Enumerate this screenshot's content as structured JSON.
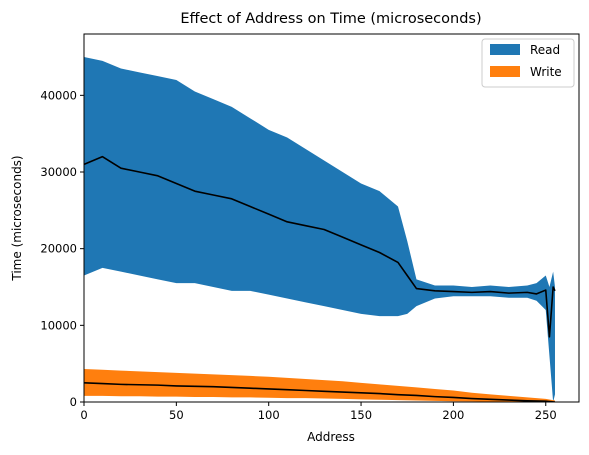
{
  "chart_data": {
    "type": "area",
    "title": "Effect of Address on Time (microseconds)",
    "xlabel": "Address",
    "ylabel": "Time (microseconds)",
    "xlim": [
      0,
      268
    ],
    "ylim": [
      0,
      48000
    ],
    "xticks": [
      "0",
      "50",
      "100",
      "150",
      "200",
      "250"
    ],
    "yticks": [
      "0",
      "10000",
      "20000",
      "30000",
      "40000"
    ],
    "xtick_values": [
      0,
      50,
      100,
      150,
      200,
      250
    ],
    "ytick_values": [
      0,
      10000,
      20000,
      30000,
      40000
    ],
    "grid": false,
    "legend_position": "top-right",
    "legend": [
      "Read",
      "Write"
    ],
    "mean_line_color": "#000000",
    "series": [
      {
        "name": "Read",
        "color": "#1f77b4",
        "note_band": "min/max band with mean line",
        "x": [
          0,
          10,
          20,
          30,
          40,
          50,
          60,
          70,
          80,
          90,
          100,
          110,
          120,
          130,
          140,
          150,
          160,
          170,
          175,
          180,
          190,
          200,
          210,
          220,
          230,
          240,
          245,
          250,
          252,
          254,
          255
        ],
        "upper": [
          45000,
          44500,
          43500,
          43000,
          42500,
          42000,
          40500,
          39500,
          38500,
          37000,
          35500,
          34500,
          33000,
          31500,
          30000,
          28500,
          27500,
          25500,
          21000,
          16000,
          15200,
          15200,
          15000,
          15200,
          15000,
          15200,
          15500,
          16500,
          15000,
          17000,
          15000
        ],
        "mean": [
          31000,
          32000,
          30500,
          30000,
          29500,
          28500,
          27500,
          27000,
          26500,
          25500,
          24500,
          23500,
          23000,
          22500,
          21500,
          20500,
          19500,
          18200,
          16500,
          14800,
          14500,
          14400,
          14300,
          14400,
          14200,
          14300,
          14100,
          14600,
          8500,
          15000,
          14500
        ],
        "lower": [
          16500,
          17500,
          17000,
          16500,
          16000,
          15500,
          15500,
          15000,
          14500,
          14500,
          14000,
          13500,
          13000,
          12500,
          12000,
          11500,
          11200,
          11200,
          11500,
          12500,
          13500,
          13800,
          13800,
          13800,
          13600,
          13600,
          13200,
          12000,
          6000,
          0,
          1000
        ]
      },
      {
        "name": "Write",
        "color": "#ff7f0e",
        "x": [
          0,
          10,
          20,
          30,
          40,
          50,
          60,
          70,
          80,
          90,
          100,
          110,
          120,
          130,
          140,
          150,
          160,
          170,
          180,
          190,
          200,
          210,
          220,
          230,
          240,
          250,
          255
        ],
        "upper": [
          4300,
          4200,
          4100,
          4000,
          3900,
          3800,
          3700,
          3600,
          3500,
          3400,
          3300,
          3150,
          3000,
          2850,
          2700,
          2500,
          2300,
          2100,
          1900,
          1700,
          1500,
          1200,
          1000,
          800,
          600,
          400,
          200
        ],
        "mean": [
          2500,
          2400,
          2300,
          2250,
          2200,
          2100,
          2050,
          2000,
          1900,
          1800,
          1700,
          1600,
          1500,
          1400,
          1300,
          1200,
          1100,
          950,
          850,
          700,
          600,
          450,
          350,
          250,
          150,
          100,
          0
        ],
        "lower": [
          800,
          800,
          750,
          750,
          700,
          700,
          650,
          650,
          600,
          600,
          550,
          500,
          500,
          450,
          400,
          350,
          300,
          250,
          200,
          150,
          100,
          80,
          50,
          30,
          20,
          0,
          0
        ]
      }
    ]
  }
}
